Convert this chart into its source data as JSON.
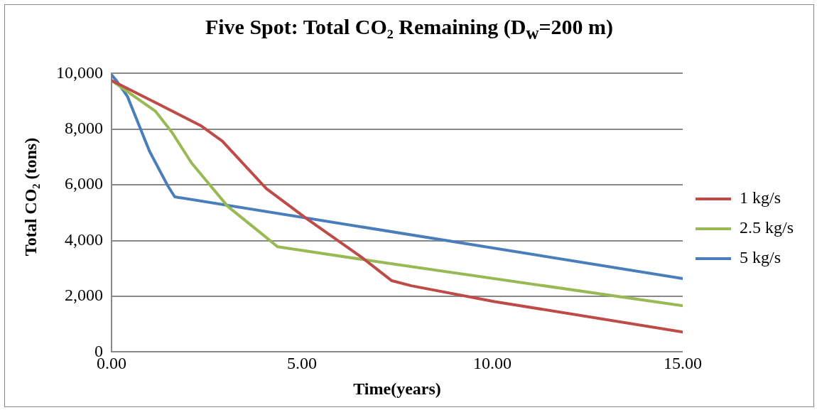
{
  "chart_data": {
    "type": "line",
    "title": "Five Spot: Total CO₂ Remaining (D$_{w}$=200 m)",
    "xlabel": "Time(years)",
    "ylabel": "Total CO₂ (tons)",
    "xlim": [
      0,
      15
    ],
    "xticks": [
      {
        "value": 0,
        "label": "0.00"
      },
      {
        "value": 5,
        "label": "5.00"
      },
      {
        "value": 10,
        "label": "10.00"
      },
      {
        "value": 15,
        "label": "15.00"
      }
    ],
    "ylim": [
      0,
      10000
    ],
    "yticks": [
      0,
      {
        "value": 2000,
        "label": "2,000"
      },
      {
        "value": 4000,
        "label": "4,000"
      },
      {
        "value": 6000,
        "label": "6,000"
      },
      {
        "value": 8000,
        "label": "8,000"
      },
      {
        "value": 10000,
        "label": "10,000"
      }
    ],
    "grid": "y",
    "legend": "right",
    "marker": "none",
    "line_style": "solid",
    "series": [
      {
        "name": "1 kg/s",
        "color": "#be4b48",
        "x": [
          0,
          1.15,
          2.34,
          2.91,
          4.07,
          5.09,
          6.55,
          7.36,
          7.87,
          10.06,
          15
        ],
        "values": [
          9750,
          8960,
          8130,
          7570,
          5860,
          4820,
          3420,
          2560,
          2380,
          1810,
          720
        ]
      },
      {
        "name": "2.5 kg/s",
        "color": "#98b954",
        "x": [
          0,
          1.15,
          1.59,
          2.1,
          3.05,
          3.85,
          4.36,
          7.14,
          15
        ],
        "values": [
          9750,
          8650,
          7880,
          6790,
          5230,
          4350,
          3780,
          3210,
          1660
        ]
      },
      {
        "name": "5 kg/s",
        "color": "#4a7ebb",
        "x": [
          0,
          0.13,
          0.42,
          1.0,
          1.48,
          1.66,
          15
        ],
        "values": [
          9950,
          9740,
          9170,
          7200,
          5960,
          5570,
          2640
        ]
      }
    ]
  }
}
